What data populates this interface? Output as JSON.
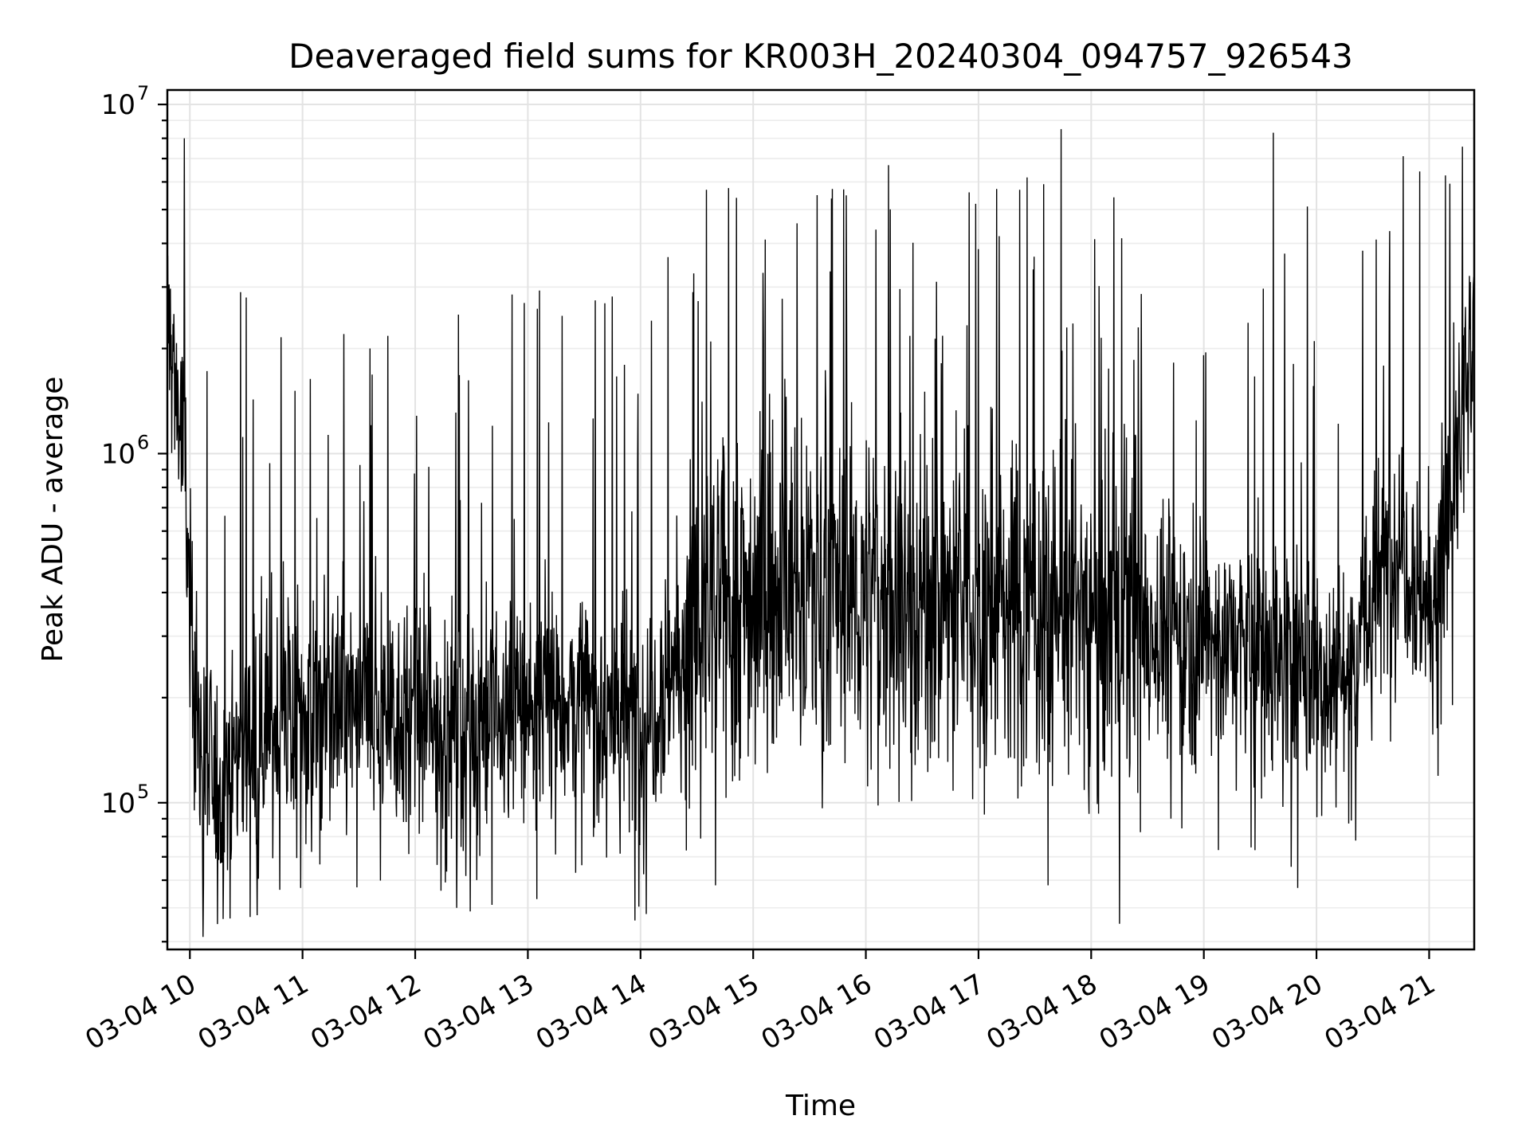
{
  "chart_data": {
    "type": "line",
    "title": "Deaveraged field sums for KR003H_20240304_094757_926543",
    "xlabel": "Time",
    "ylabel": "Peak ADU - average",
    "yscale": "log",
    "ylim": [
      38000,
      11000000
    ],
    "xlim": [
      "03-04 09:48",
      "03-04 21:24"
    ],
    "grid": true,
    "x_tick_labels": [
      "03-04 10",
      "03-04 11",
      "03-04 12",
      "03-04 13",
      "03-04 14",
      "03-04 15",
      "03-04 16",
      "03-04 17",
      "03-04 18",
      "03-04 19",
      "03-04 20",
      "03-04 21"
    ],
    "y_ticks": [
      {
        "base": "10",
        "exp": "5",
        "value": 100000
      },
      {
        "base": "10",
        "exp": "6",
        "value": 1000000
      },
      {
        "base": "10",
        "exp": "7",
        "value": 10000000
      }
    ],
    "series_color": "#000000",
    "series": [
      {
        "x": [
          "03-04 09:48",
          "03-04 09:52",
          "03-04 09:56",
          "03-04 10:00",
          "03-04 10:05",
          "03-04 10:10",
          "03-04 10:15",
          "03-04 10:20",
          "03-04 10:30",
          "03-04 10:40",
          "03-04 10:50",
          "03-04 11:00",
          "03-04 11:15",
          "03-04 11:30",
          "03-04 11:45",
          "03-04 12:00",
          "03-04 12:15",
          "03-04 12:30",
          "03-04 12:45",
          "03-04 13:00",
          "03-04 13:15",
          "03-04 13:30",
          "03-04 13:45",
          "03-04 14:00",
          "03-04 14:15",
          "03-04 14:30",
          "03-04 14:45",
          "03-04 15:00",
          "03-04 15:15",
          "03-04 15:30",
          "03-04 15:45",
          "03-04 16:00",
          "03-04 16:15",
          "03-04 16:30",
          "03-04 16:45",
          "03-04 17:00",
          "03-04 17:15",
          "03-04 17:30",
          "03-04 17:45",
          "03-04 18:00",
          "03-04 18:15",
          "03-04 18:30",
          "03-04 18:45",
          "03-04 19:00",
          "03-04 19:15",
          "03-04 19:30",
          "03-04 19:45",
          "03-04 20:00",
          "03-04 20:15",
          "03-04 20:30",
          "03-04 20:45",
          "03-04 21:00",
          "03-04 21:10",
          "03-04 21:20",
          "03-04 21:24"
        ],
        "values": [
          2500000,
          1600000,
          1100000,
          400000,
          150000,
          120000,
          110000,
          130000,
          150000,
          170000,
          175000,
          180000,
          185000,
          180000,
          190000,
          170000,
          165000,
          170000,
          175000,
          190000,
          200000,
          190000,
          180000,
          170000,
          240000,
          300000,
          380000,
          390000,
          410000,
          420000,
          400000,
          390000,
          380000,
          370000,
          375000,
          360000,
          370000,
          380000,
          365000,
          350000,
          330000,
          320000,
          310000,
          300000,
          290000,
          270000,
          250000,
          240000,
          230000,
          380000,
          600000,
          350000,
          600000,
          1500000,
          1700000
        ],
        "peaks": [
          {
            "x": "03-04 10:27",
            "value": 2900000
          },
          {
            "x": "03-04 10:30",
            "value": 2800000
          },
          {
            "x": "03-04 11:22",
            "value": 2200000
          },
          {
            "x": "03-04 11:36",
            "value": 2000000
          },
          {
            "x": "03-04 12:23",
            "value": 2500000
          },
          {
            "x": "03-04 12:58",
            "value": 2700000
          },
          {
            "x": "03-04 13:05",
            "value": 2600000
          },
          {
            "x": "03-04 14:28",
            "value": 2900000
          },
          {
            "x": "03-04 14:35",
            "value": 5700000
          },
          {
            "x": "03-04 14:51",
            "value": 5400000
          },
          {
            "x": "03-04 15:34",
            "value": 5500000
          },
          {
            "x": "03-04 16:12",
            "value": 6700000
          },
          {
            "x": "03-04 16:55",
            "value": 5600000
          },
          {
            "x": "03-04 17:22",
            "value": 5700000
          },
          {
            "x": "03-04 17:44",
            "value": 8500000
          },
          {
            "x": "03-04 19:37",
            "value": 8300000
          },
          {
            "x": "03-04 19:55",
            "value": 5100000
          },
          {
            "x": "03-04 21:22",
            "value": 3100000
          }
        ],
        "troughs": [
          {
            "x": "03-04 10:18",
            "value": 62000
          },
          {
            "x": "03-04 10:59",
            "value": 57000
          },
          {
            "x": "03-04 12:22",
            "value": 50000
          },
          {
            "x": "03-04 12:41",
            "value": 51000
          },
          {
            "x": "03-04 13:57",
            "value": 46000
          },
          {
            "x": "03-04 14:03",
            "value": 48000
          },
          {
            "x": "03-04 14:40",
            "value": 58000
          },
          {
            "x": "03-04 17:37",
            "value": 58000
          },
          {
            "x": "03-04 18:15",
            "value": 45000
          },
          {
            "x": "03-04 19:50",
            "value": 57000
          }
        ]
      }
    ]
  }
}
